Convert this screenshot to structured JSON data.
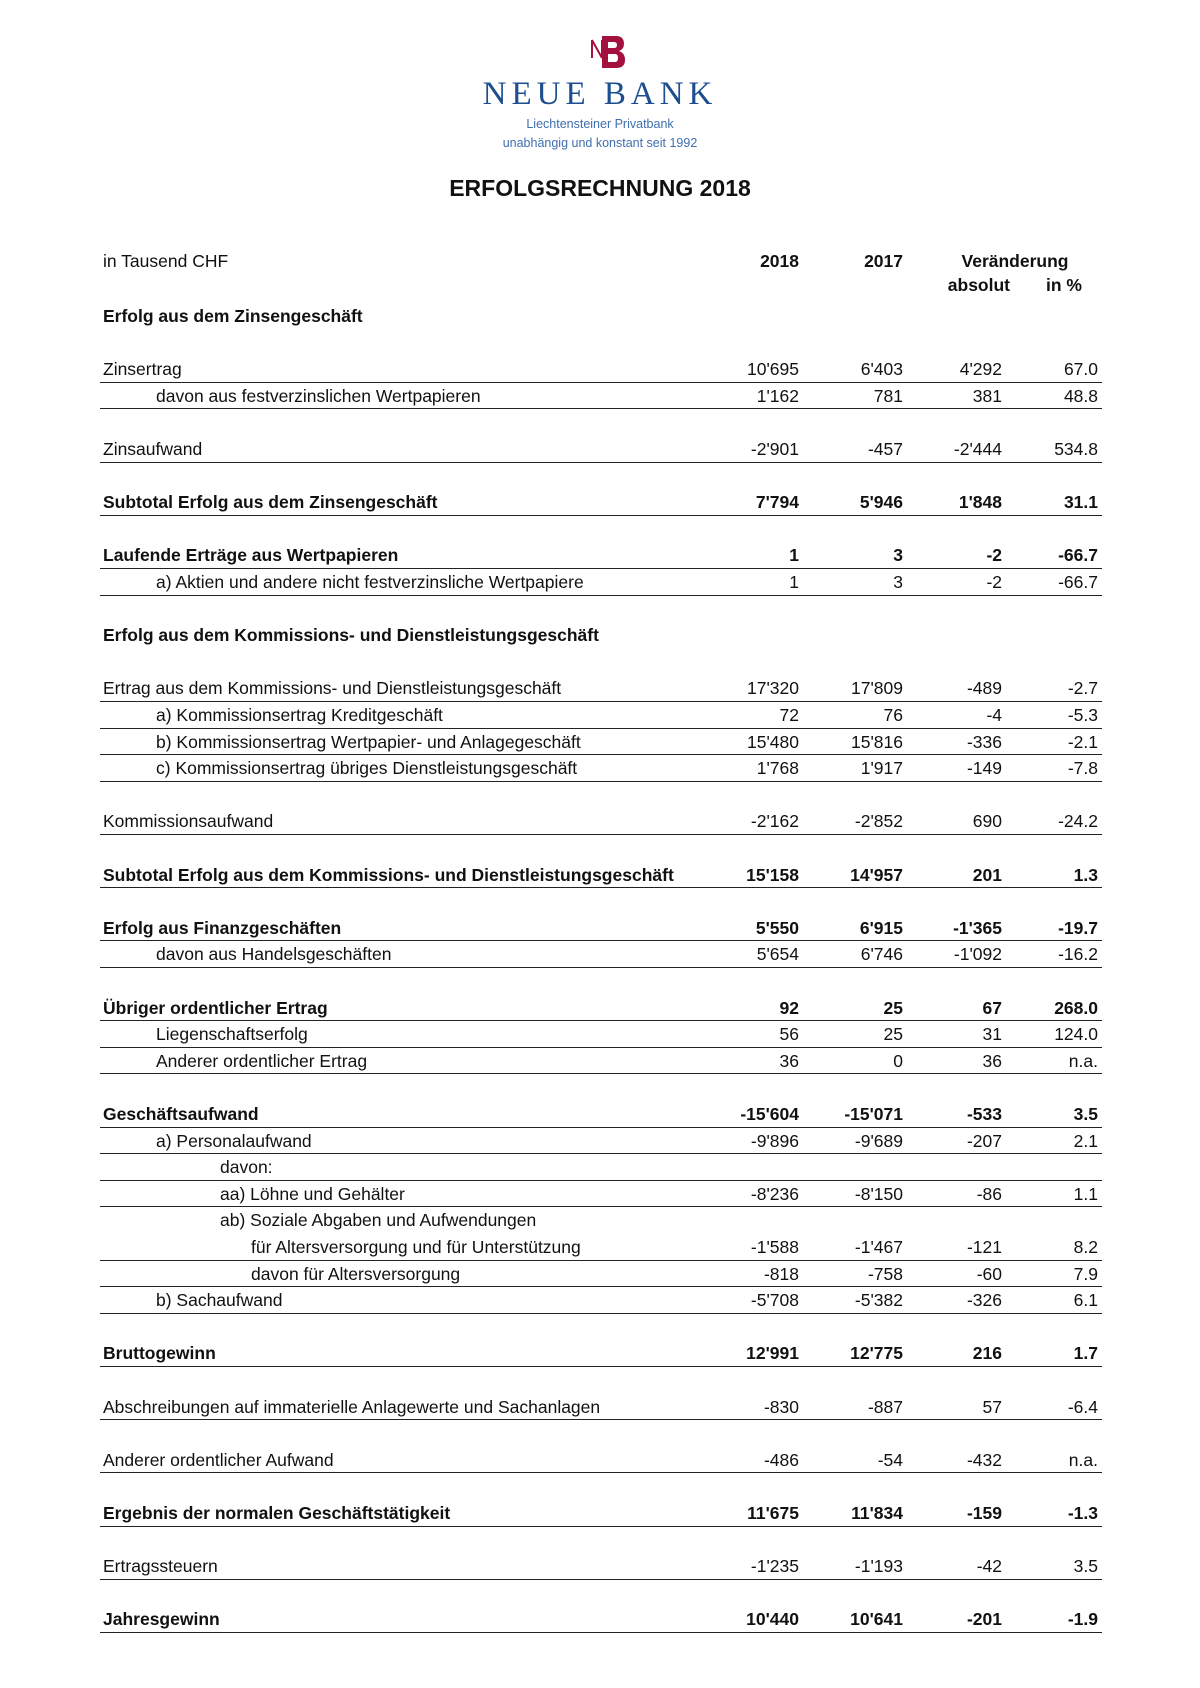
{
  "logo": {
    "brand": "NEUE BANK",
    "mark": "NB",
    "tagline1": "Liechtensteiner Privatbank",
    "tagline2": "unabhängig und konstant seit 1992",
    "colors": {
      "mark": "#a3123f",
      "brand": "#1d4e8f"
    }
  },
  "title": "ERFOLGSRECHNUNG 2018",
  "header": {
    "unit": "in Tausend CHF",
    "col_2018": "2018",
    "col_2017": "2017",
    "change": "Veränderung",
    "absolute": "absolut",
    "percent": "in %"
  },
  "rows": [
    {
      "label": "Erfolg aus dem Zinsengeschäft",
      "indent": 0,
      "bold": true,
      "line": false,
      "values": [
        "",
        "",
        "",
        ""
      ]
    },
    {
      "gap": true
    },
    {
      "label": "Zinsertrag",
      "indent": 0,
      "bold": false,
      "line": true,
      "values": [
        "10'695",
        "6'403",
        "4'292",
        "67.0"
      ]
    },
    {
      "label": "davon aus festverzinslichen Wertpapieren",
      "indent": 1,
      "bold": false,
      "line": true,
      "values": [
        "1'162",
        "781",
        "381",
        "48.8"
      ]
    },
    {
      "gap": true
    },
    {
      "label": "Zinsaufwand",
      "indent": 0,
      "bold": false,
      "line": true,
      "values": [
        "-2'901",
        "-457",
        "-2'444",
        "534.8"
      ]
    },
    {
      "gap": true
    },
    {
      "label": "Subtotal Erfolg aus dem Zinsengeschäft",
      "indent": 0,
      "bold": true,
      "line": true,
      "values": [
        "7'794",
        "5'946",
        "1'848",
        "31.1"
      ]
    },
    {
      "gap": true
    },
    {
      "label": "Laufende Erträge aus Wertpapieren",
      "indent": 0,
      "bold": true,
      "line": true,
      "values": [
        "1",
        "3",
        "-2",
        "-66.7"
      ]
    },
    {
      "label": "a) Aktien und andere nicht festverzinsliche Wertpapiere",
      "indent": 1,
      "bold": false,
      "line": true,
      "values": [
        "1",
        "3",
        "-2",
        "-66.7"
      ]
    },
    {
      "gap": true
    },
    {
      "label": "Erfolg aus dem Kommissions- und Dienstleistungsgeschäft",
      "indent": 0,
      "bold": true,
      "line": false,
      "values": [
        "",
        "",
        "",
        ""
      ]
    },
    {
      "gap": true
    },
    {
      "label": "Ertrag aus dem Kommissions- und Dienstleistungsgeschäft",
      "indent": 0,
      "bold": false,
      "line": true,
      "values": [
        "17'320",
        "17'809",
        "-489",
        "-2.7"
      ]
    },
    {
      "label": "a) Kommissionsertrag Kreditgeschäft",
      "indent": 1,
      "bold": false,
      "line": true,
      "values": [
        "72",
        "76",
        "-4",
        "-5.3"
      ]
    },
    {
      "label": "b) Kommissionsertrag Wertpapier- und Anlagegeschäft",
      "indent": 1,
      "bold": false,
      "line": true,
      "values": [
        "15'480",
        "15'816",
        "-336",
        "-2.1"
      ]
    },
    {
      "label": "c) Kommissionsertrag übriges Dienstleistungsgeschäft",
      "indent": 1,
      "bold": false,
      "line": true,
      "values": [
        "1'768",
        "1'917",
        "-149",
        "-7.8"
      ]
    },
    {
      "gap": true
    },
    {
      "label": "Kommissionsaufwand",
      "indent": 0,
      "bold": false,
      "line": true,
      "values": [
        "-2'162",
        "-2'852",
        "690",
        "-24.2"
      ]
    },
    {
      "gap": true
    },
    {
      "label": "Subtotal Erfolg aus dem Kommissions- und Dienstleistungsgeschäft",
      "indent": 0,
      "bold": true,
      "line": true,
      "values": [
        "15'158",
        "14'957",
        "201",
        "1.3"
      ]
    },
    {
      "gap": true
    },
    {
      "label": "Erfolg aus Finanzgeschäften",
      "indent": 0,
      "bold": true,
      "line": true,
      "values": [
        "5'550",
        "6'915",
        "-1'365",
        "-19.7"
      ]
    },
    {
      "label": "davon aus Handelsgeschäften",
      "indent": 1,
      "bold": false,
      "line": true,
      "values": [
        "5'654",
        "6'746",
        "-1'092",
        "-16.2"
      ]
    },
    {
      "gap": true
    },
    {
      "label": "Übriger ordentlicher Ertrag",
      "indent": 0,
      "bold": true,
      "line": true,
      "values": [
        "92",
        "25",
        "67",
        "268.0"
      ]
    },
    {
      "label": "Liegenschaftserfolg",
      "indent": 1,
      "bold": false,
      "line": true,
      "values": [
        "56",
        "25",
        "31",
        "124.0"
      ]
    },
    {
      "label": "Anderer ordentlicher Ertrag",
      "indent": 1,
      "bold": false,
      "line": true,
      "values": [
        "36",
        "0",
        "36",
        "n.a."
      ]
    },
    {
      "gap": true
    },
    {
      "label": "Geschäftsaufwand",
      "indent": 0,
      "bold": true,
      "line": true,
      "values": [
        "-15'604",
        "-15'071",
        "-533",
        "3.5"
      ]
    },
    {
      "label": "a) Personalaufwand",
      "indent": 1,
      "bold": false,
      "line": true,
      "values": [
        "-9'896",
        "-9'689",
        "-207",
        "2.1"
      ]
    },
    {
      "label": "davon:",
      "indent": 2,
      "bold": false,
      "line": true,
      "values": [
        "",
        "",
        "",
        ""
      ]
    },
    {
      "label": "aa) Löhne und Gehälter",
      "indent": 2,
      "bold": false,
      "line": true,
      "values": [
        "-8'236",
        "-8'150",
        "-86",
        "1.1"
      ]
    },
    {
      "label": "ab) Soziale Abgaben und Aufwendungen",
      "indent": 2,
      "bold": false,
      "line": false,
      "values": [
        "",
        "",
        "",
        ""
      ]
    },
    {
      "label": "für Altersversorgung und für Unterstützung",
      "indent": 3,
      "bold": false,
      "line": true,
      "values": [
        "-1'588",
        "-1'467",
        "-121",
        "8.2"
      ]
    },
    {
      "label": "davon für Altersversorgung",
      "indent": 3,
      "bold": false,
      "line": true,
      "values": [
        "-818",
        "-758",
        "-60",
        "7.9"
      ]
    },
    {
      "label": "b) Sachaufwand",
      "indent": 1,
      "bold": false,
      "line": true,
      "values": [
        "-5'708",
        "-5'382",
        "-326",
        "6.1"
      ]
    },
    {
      "gap": true
    },
    {
      "label": "Bruttogewinn",
      "indent": 0,
      "bold": true,
      "line": true,
      "values": [
        "12'991",
        "12'775",
        "216",
        "1.7"
      ]
    },
    {
      "gap": true
    },
    {
      "label": "Abschreibungen auf immaterielle Anlagewerte und Sachanlagen",
      "indent": 0,
      "bold": false,
      "line": true,
      "values": [
        "-830",
        "-887",
        "57",
        "-6.4"
      ]
    },
    {
      "gap": true
    },
    {
      "label": "Anderer ordentlicher Aufwand",
      "indent": 0,
      "bold": false,
      "line": true,
      "values": [
        "-486",
        "-54",
        "-432",
        "n.a."
      ]
    },
    {
      "gap": true
    },
    {
      "label": "Ergebnis der normalen Geschäftstätigkeit",
      "indent": 0,
      "bold": true,
      "line": true,
      "values": [
        "11'675",
        "11'834",
        "-159",
        "-1.3"
      ]
    },
    {
      "gap": true
    },
    {
      "label": "Ertragssteuern",
      "indent": 0,
      "bold": false,
      "line": true,
      "values": [
        "-1'235",
        "-1'193",
        "-42",
        "3.5"
      ]
    },
    {
      "gap": true
    },
    {
      "label": "Jahresgewinn",
      "indent": 0,
      "bold": true,
      "line": true,
      "values": [
        "10'440",
        "10'641",
        "-201",
        "-1.9"
      ]
    }
  ]
}
